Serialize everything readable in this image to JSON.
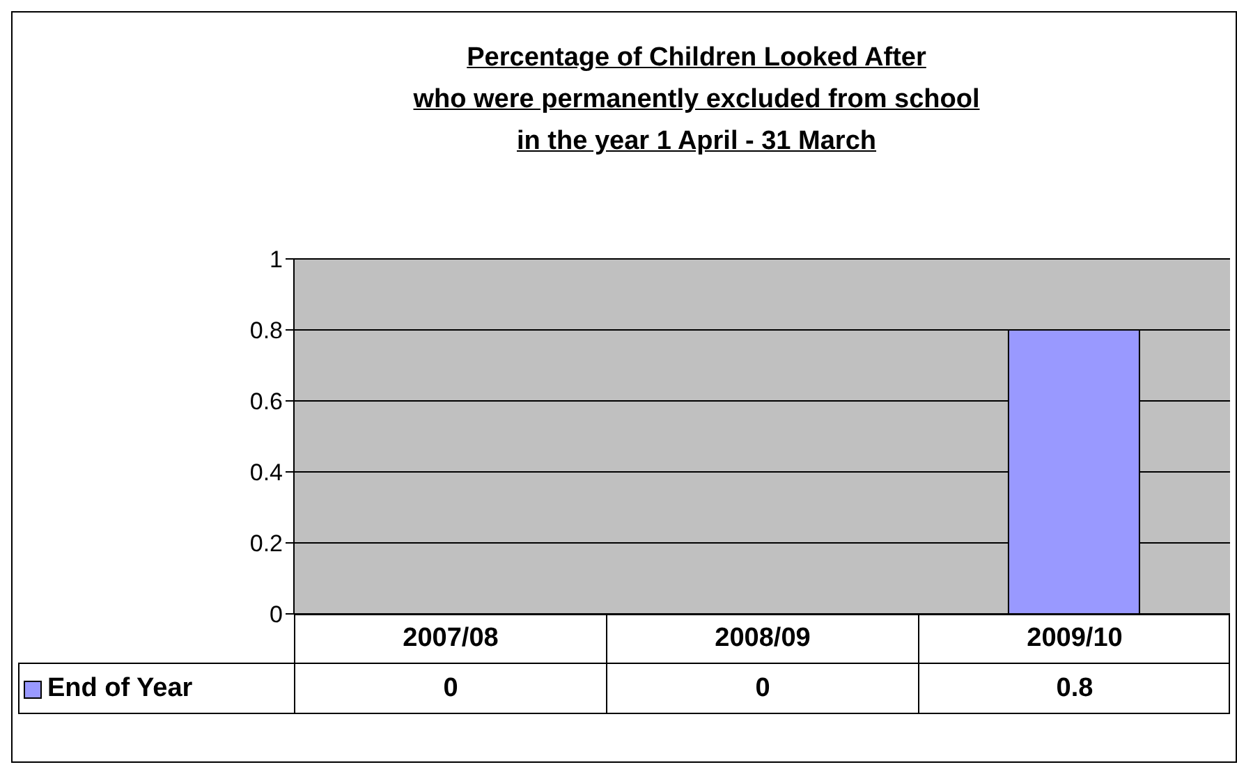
{
  "chart_data": {
    "type": "bar",
    "title": "Percentage of Children Looked After\nwho were permanently excluded from school\nin the year 1 April - 31 March",
    "categories": [
      "2007/08",
      "2008/09",
      "2009/10"
    ],
    "series": [
      {
        "name": "End of Year",
        "color": "#9999ff",
        "values": [
          0,
          0,
          0.8
        ]
      }
    ],
    "ylim": [
      0,
      1
    ],
    "yticks": [
      0,
      0.2,
      0.4,
      0.6,
      0.8,
      1
    ],
    "grid": "y",
    "legend": "bottom",
    "data_labels": true
  }
}
